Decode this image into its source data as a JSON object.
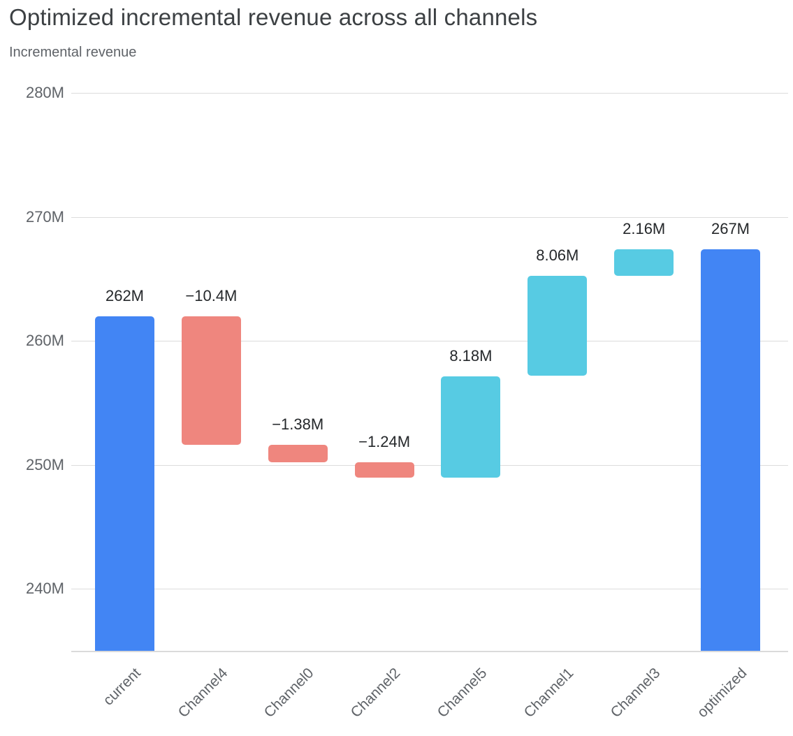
{
  "header": {
    "title": "Optimized incremental revenue across all channels",
    "subtitle": "Incremental revenue"
  },
  "chart_data": {
    "type": "bar",
    "variant": "waterfall",
    "title": "Optimized incremental revenue across all channels",
    "xlabel": "",
    "ylabel": "Incremental revenue",
    "unit": "millions",
    "grid": true,
    "legend": "none",
    "ylim": [
      235,
      280
    ],
    "yticks": [
      {
        "value": 240,
        "label": "240M"
      },
      {
        "value": 250,
        "label": "250M"
      },
      {
        "value": 260,
        "label": "260M"
      },
      {
        "value": 270,
        "label": "270M"
      },
      {
        "value": 280,
        "label": "280M"
      }
    ],
    "categories": [
      "current",
      "Channel4",
      "Channel0",
      "Channel2",
      "Channel5",
      "Channel1",
      "Channel3",
      "optimized"
    ],
    "bars": [
      {
        "category": "current",
        "kind": "total",
        "from": 0,
        "to": 262,
        "delta": 262,
        "label": "262M"
      },
      {
        "category": "Channel4",
        "kind": "decrease",
        "from": 262,
        "to": 251.6,
        "delta": -10.4,
        "label": "−10.4M"
      },
      {
        "category": "Channel0",
        "kind": "decrease",
        "from": 251.6,
        "to": 250.22,
        "delta": -1.38,
        "label": "−1.38M"
      },
      {
        "category": "Channel2",
        "kind": "decrease",
        "from": 250.22,
        "to": 248.98,
        "delta": -1.24,
        "label": "−1.24M"
      },
      {
        "category": "Channel5",
        "kind": "increase",
        "from": 248.98,
        "to": 257.16,
        "delta": 8.18,
        "label": "8.18M"
      },
      {
        "category": "Channel1",
        "kind": "increase",
        "from": 257.16,
        "to": 265.22,
        "delta": 8.06,
        "label": "8.06M"
      },
      {
        "category": "Channel3",
        "kind": "increase",
        "from": 265.22,
        "to": 267.38,
        "delta": 2.16,
        "label": "2.16M"
      },
      {
        "category": "optimized",
        "kind": "total",
        "from": 0,
        "to": 267.38,
        "delta": 267.38,
        "label": "267M"
      }
    ],
    "colors": {
      "total": "#4285F4",
      "increase": "#57CBE3",
      "decrease": "#EF867E"
    }
  }
}
